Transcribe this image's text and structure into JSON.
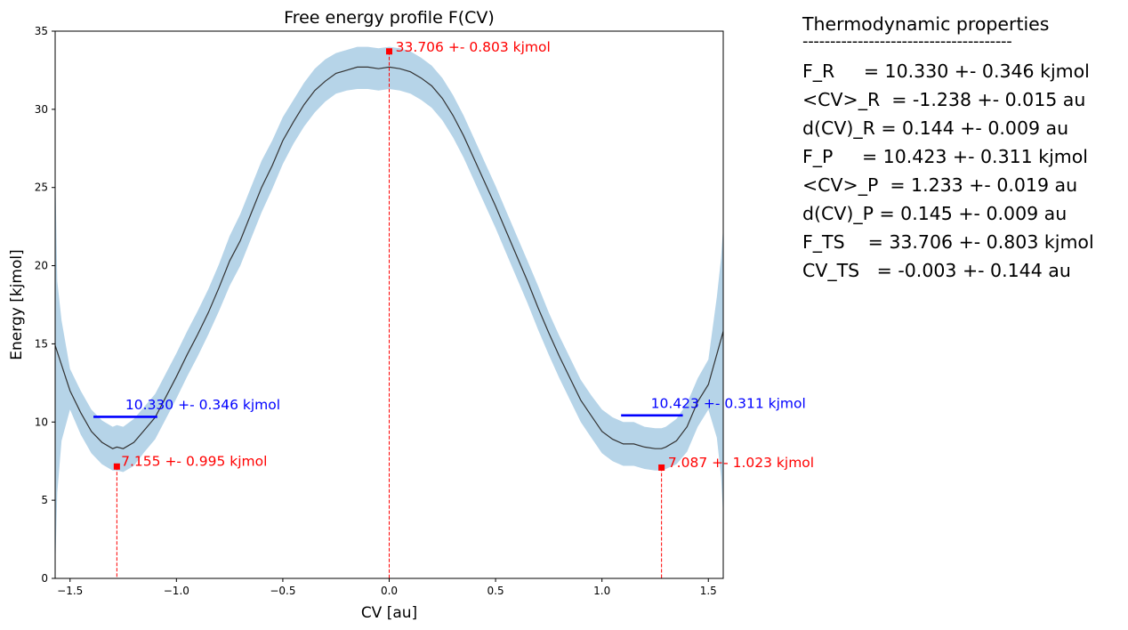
{
  "chart_data": {
    "type": "line",
    "title": "Free energy profile F(CV)",
    "xlabel": "CV [au]",
    "ylabel": "Energy [kjmol]",
    "xlim": [
      -1.57,
      1.57
    ],
    "ylim": [
      0,
      35
    ],
    "xticks": [
      -1.5,
      -1.0,
      -0.5,
      0.0,
      0.5,
      1.0,
      1.5
    ],
    "xtick_labels": [
      "−1.5",
      "−1.0",
      "−0.5",
      "0.0",
      "0.5",
      "1.0",
      "1.5"
    ],
    "yticks": [
      0,
      5,
      10,
      15,
      20,
      25,
      30,
      35
    ],
    "ytick_labels": [
      "0",
      "5",
      "10",
      "15",
      "20",
      "25",
      "30",
      "35"
    ],
    "grid": false,
    "series": [
      {
        "kind": "mean",
        "color": "#333333",
        "x": [
          -1.57,
          -1.5,
          -1.45,
          -1.4,
          -1.35,
          -1.3,
          -1.28,
          -1.25,
          -1.2,
          -1.15,
          -1.1,
          -1.05,
          -1.0,
          -0.95,
          -0.9,
          -0.85,
          -0.8,
          -0.75,
          -0.7,
          -0.65,
          -0.6,
          -0.55,
          -0.5,
          -0.45,
          -0.4,
          -0.35,
          -0.3,
          -0.25,
          -0.2,
          -0.15,
          -0.1,
          -0.05,
          0.0,
          0.05,
          0.1,
          0.15,
          0.2,
          0.25,
          0.3,
          0.35,
          0.4,
          0.45,
          0.5,
          0.55,
          0.6,
          0.65,
          0.7,
          0.75,
          0.8,
          0.85,
          0.9,
          0.95,
          1.0,
          1.05,
          1.1,
          1.15,
          1.2,
          1.25,
          1.28,
          1.3,
          1.35,
          1.4,
          1.45,
          1.5,
          1.57
        ],
        "y": [
          14.9,
          12.0,
          10.6,
          9.4,
          8.7,
          8.3,
          8.4,
          8.3,
          8.7,
          9.5,
          10.3,
          11.6,
          12.9,
          14.3,
          15.6,
          17.0,
          18.6,
          20.3,
          21.6,
          23.3,
          25.0,
          26.4,
          28.0,
          29.2,
          30.3,
          31.2,
          31.8,
          32.3,
          32.5,
          32.7,
          32.7,
          32.6,
          32.7,
          32.6,
          32.4,
          32.0,
          31.5,
          30.7,
          29.6,
          28.3,
          26.8,
          25.3,
          23.8,
          22.2,
          20.6,
          19.0,
          17.3,
          15.7,
          14.2,
          12.8,
          11.4,
          10.4,
          9.4,
          8.9,
          8.6,
          8.6,
          8.4,
          8.3,
          8.3,
          8.4,
          8.8,
          9.7,
          11.3,
          12.4,
          15.8
        ]
      },
      {
        "kind": "error-band",
        "color": "#b6d4e8",
        "x": [
          -1.57,
          -1.56,
          -1.54,
          -1.5,
          -1.45,
          -1.4,
          -1.35,
          -1.3,
          -1.28,
          -1.25,
          -1.2,
          -1.15,
          -1.1,
          -1.05,
          -1.0,
          -0.95,
          -0.9,
          -0.85,
          -0.8,
          -0.75,
          -0.7,
          -0.65,
          -0.6,
          -0.55,
          -0.5,
          -0.45,
          -0.4,
          -0.35,
          -0.3,
          -0.25,
          -0.2,
          -0.15,
          -0.1,
          -0.05,
          0.0,
          0.05,
          0.1,
          0.15,
          0.2,
          0.25,
          0.3,
          0.35,
          0.4,
          0.45,
          0.5,
          0.55,
          0.6,
          0.65,
          0.7,
          0.75,
          0.8,
          0.85,
          0.9,
          0.95,
          1.0,
          1.05,
          1.1,
          1.15,
          1.2,
          1.25,
          1.28,
          1.3,
          1.35,
          1.4,
          1.45,
          1.5,
          1.54,
          1.56,
          1.57
        ],
        "lower": [
          0.5,
          5.5,
          8.8,
          10.8,
          9.2,
          8.0,
          7.3,
          6.9,
          6.9,
          6.8,
          7.2,
          8.1,
          8.9,
          10.2,
          11.5,
          12.9,
          14.2,
          15.6,
          17.1,
          18.7,
          20.0,
          21.7,
          23.4,
          24.9,
          26.5,
          27.8,
          28.9,
          29.8,
          30.5,
          31.0,
          31.2,
          31.3,
          31.3,
          31.2,
          31.3,
          31.2,
          31.0,
          30.6,
          30.1,
          29.3,
          28.2,
          26.9,
          25.4,
          23.9,
          22.4,
          20.8,
          19.2,
          17.6,
          15.9,
          14.3,
          12.8,
          11.4,
          10.0,
          9.0,
          8.0,
          7.5,
          7.2,
          7.2,
          7.0,
          6.9,
          6.9,
          7.0,
          7.3,
          8.1,
          9.7,
          10.8,
          9.0,
          6.5,
          4.0
        ],
        "upper": [
          26.5,
          19.0,
          16.5,
          13.4,
          12.0,
          10.8,
          10.1,
          9.7,
          9.8,
          9.7,
          10.2,
          11.0,
          11.8,
          13.1,
          14.4,
          15.8,
          17.1,
          18.5,
          20.1,
          21.9,
          23.3,
          25.0,
          26.7,
          28.0,
          29.5,
          30.6,
          31.7,
          32.6,
          33.2,
          33.6,
          33.8,
          34.0,
          34.0,
          33.9,
          34.0,
          33.9,
          33.7,
          33.3,
          32.8,
          32.0,
          30.9,
          29.6,
          28.1,
          26.6,
          25.1,
          23.5,
          21.9,
          20.3,
          18.7,
          17.0,
          15.5,
          14.1,
          12.7,
          11.7,
          10.8,
          10.3,
          10.0,
          10.0,
          9.7,
          9.6,
          9.6,
          9.7,
          10.2,
          11.2,
          12.8,
          14.0,
          18.0,
          20.5,
          22.5
        ]
      }
    ],
    "levels": [
      {
        "x0": -1.39,
        "x1": -1.09,
        "y": 10.33,
        "color": "#0000ff",
        "label": "10.330 +- 0.346 kjmol",
        "label_x": -1.24,
        "label_y": 10.8
      },
      {
        "x0": 1.09,
        "x1": 1.38,
        "y": 10.423,
        "color": "#0000ff",
        "label": "10.423 +- 0.311 kjmol",
        "label_x": 1.23,
        "label_y": 10.9
      }
    ],
    "points": [
      {
        "x": -1.28,
        "y": 7.155,
        "color": "#ff0000",
        "label": "7.155 +- 0.995 kjmol",
        "label_x": -1.26,
        "label_y": 7.2
      },
      {
        "x": 0.0,
        "y": 33.706,
        "color": "#ff0000",
        "label": "33.706 +- 0.803 kjmol",
        "label_x": 0.03,
        "label_y": 33.7
      },
      {
        "x": 1.28,
        "y": 7.087,
        "color": "#ff0000",
        "label": "7.087 +- 1.023 kjmol",
        "label_x": 1.31,
        "label_y": 7.1
      }
    ]
  },
  "properties": {
    "title": "Thermodynamic properties",
    "rule": "--------------------------------------",
    "lines": [
      "F_R     = 10.330 +- 0.346 kjmol",
      "<CV>_R  = -1.238 +- 0.015 au",
      "d(CV)_R = 0.144 +- 0.009 au",
      "F_P     = 10.423 +- 0.311 kjmol",
      "<CV>_P  = 1.233 +- 0.019 au",
      "d(CV)_P = 0.145 +- 0.009 au",
      "F_TS    = 33.706 +- 0.803 kjmol",
      "CV_TS   = -0.003 +- 0.144 au"
    ]
  }
}
